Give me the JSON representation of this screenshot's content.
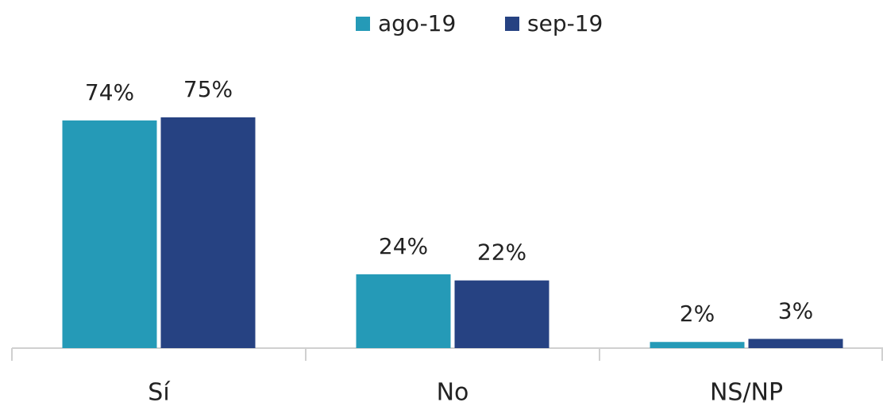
{
  "chart_data": {
    "type": "bar",
    "categories": [
      "Sí",
      "No",
      "NS/NP"
    ],
    "series": [
      {
        "name": "ago-19",
        "color": "#259ab7",
        "values": [
          74,
          24,
          2
        ],
        "value_labels": [
          "74%",
          "24%",
          "2%"
        ]
      },
      {
        "name": "sep-19",
        "color": "#264282",
        "values": [
          75,
          22,
          3
        ],
        "value_labels": [
          "75%",
          "22%",
          "3%"
        ]
      }
    ],
    "legend": "top"
  }
}
